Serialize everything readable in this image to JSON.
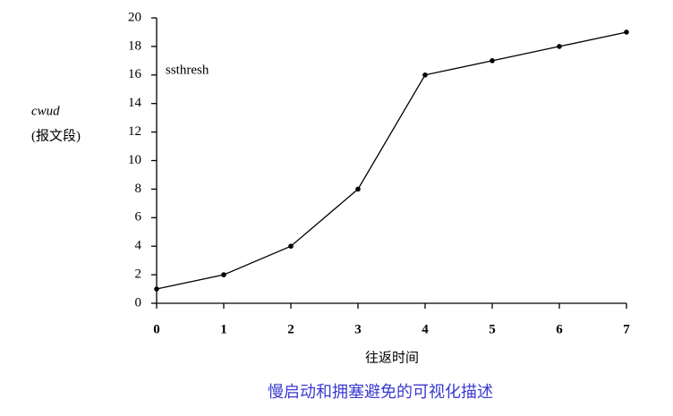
{
  "chart_data": {
    "type": "line",
    "title": "慢启动和拥塞避免的可视化描述",
    "x_label": "往返时间",
    "y_label": "cwud",
    "y_label_unit": "(报文段)",
    "annotation": "ssthresh",
    "x": [
      0,
      1,
      2,
      3,
      4,
      5,
      6,
      7
    ],
    "values": [
      1,
      2,
      4,
      8,
      16,
      17,
      18,
      19
    ],
    "color": "#000000",
    "title_color": "#3a3ad0",
    "xlim": [
      0,
      7
    ],
    "xticks": [
      0,
      1,
      2,
      3,
      4,
      5,
      6,
      7
    ],
    "ylim": [
      0,
      20
    ],
    "yticks": [
      0,
      2,
      4,
      6,
      8,
      10,
      12,
      14,
      16,
      18,
      20
    ]
  }
}
